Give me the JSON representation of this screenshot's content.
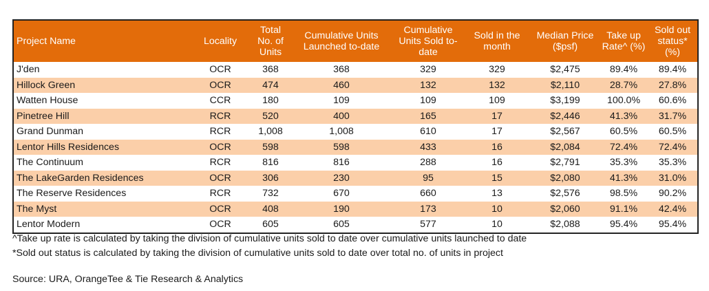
{
  "table": {
    "headers": [
      "Project Name",
      "Locality",
      "Total No. of Units",
      "Cumulative Units Launched to-date",
      "Cumulative Units Sold to-date",
      "Sold in the month",
      "Median Price ($psf)",
      "Take up Rate^ (%)",
      "Sold out status* (%)"
    ],
    "rows": [
      [
        "J'den",
        "OCR",
        "368",
        "368",
        "329",
        "329",
        "$2,475",
        "89.4%",
        "89.4%"
      ],
      [
        "Hillock Green",
        "OCR",
        "474",
        "460",
        "132",
        "132",
        "$2,110",
        "28.7%",
        "27.8%"
      ],
      [
        "Watten House",
        "CCR",
        "180",
        "109",
        "109",
        "109",
        "$3,199",
        "100.0%",
        "60.6%"
      ],
      [
        "Pinetree Hill",
        "RCR",
        "520",
        "400",
        "165",
        "17",
        "$2,446",
        "41.3%",
        "31.7%"
      ],
      [
        "Grand Dunman",
        "RCR",
        "1,008",
        "1,008",
        "610",
        "17",
        "$2,567",
        "60.5%",
        "60.5%"
      ],
      [
        "Lentor Hills Residences",
        "OCR",
        "598",
        "598",
        "433",
        "16",
        "$2,084",
        "72.4%",
        "72.4%"
      ],
      [
        "The Continuum",
        "RCR",
        "816",
        "816",
        "288",
        "16",
        "$2,791",
        "35.3%",
        "35.3%"
      ],
      [
        "The LakeGarden Residences",
        "OCR",
        "306",
        "230",
        "95",
        "15",
        "$2,080",
        "41.3%",
        "31.0%"
      ],
      [
        "The Reserve Residences",
        "RCR",
        "732",
        "670",
        "660",
        "13",
        "$2,576",
        "98.5%",
        "90.2%"
      ],
      [
        "The Myst",
        "OCR",
        "408",
        "190",
        "173",
        "10",
        "$2,060",
        "91.1%",
        "42.4%"
      ],
      [
        "Lentor Modern",
        "OCR",
        "605",
        "605",
        "577",
        "10",
        "$2,088",
        "95.4%",
        "95.4%"
      ]
    ]
  },
  "notes": [
    "^Take up rate is calculated by taking the division of cumulative units sold to date over cumulative units launched to date",
    "*Sold out status is calculated by taking the division of cumulative units sold to date over total no. of units in project"
  ],
  "source": "Source: URA, OrangeTee & Tie Research & Analytics",
  "colors": {
    "header_bg": "#e36c0a",
    "header_text": "#ffffff",
    "alt_row_bg": "#fbcfa9"
  }
}
